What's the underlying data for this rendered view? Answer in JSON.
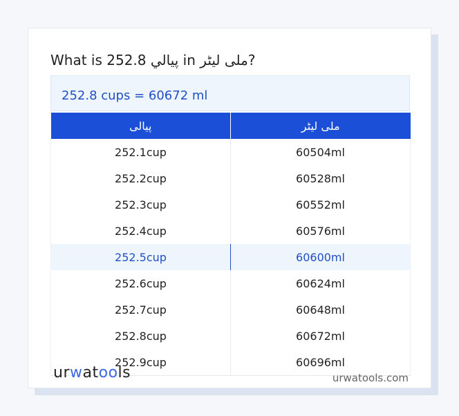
{
  "title": "What is 252.8 پیالي in ملی لیٹر?",
  "result": "252.8 cups = 60672 ml",
  "table": {
    "headers": [
      "پیالی",
      "ملی لیٹر"
    ],
    "rows": [
      [
        "252.1cup",
        "60504ml"
      ],
      [
        "252.2cup",
        "60528ml"
      ],
      [
        "252.3cup",
        "60552ml"
      ],
      [
        "252.4cup",
        "60576ml"
      ],
      [
        "252.5cup",
        "60600ml"
      ],
      [
        "252.6cup",
        "60624ml"
      ],
      [
        "252.7cup",
        "60648ml"
      ],
      [
        "252.8cup",
        "60672ml"
      ],
      [
        "252.9cup",
        "60696ml"
      ]
    ],
    "highlighted_row": 4
  },
  "footer": {
    "logo": "urwatools",
    "logo_parts": [
      "ur",
      "w",
      "at",
      "oo",
      "ls"
    ],
    "site": "urwatools.com"
  },
  "colors": {
    "accent": "#1b4fd7",
    "highlight_bg": "#eef5fd"
  }
}
